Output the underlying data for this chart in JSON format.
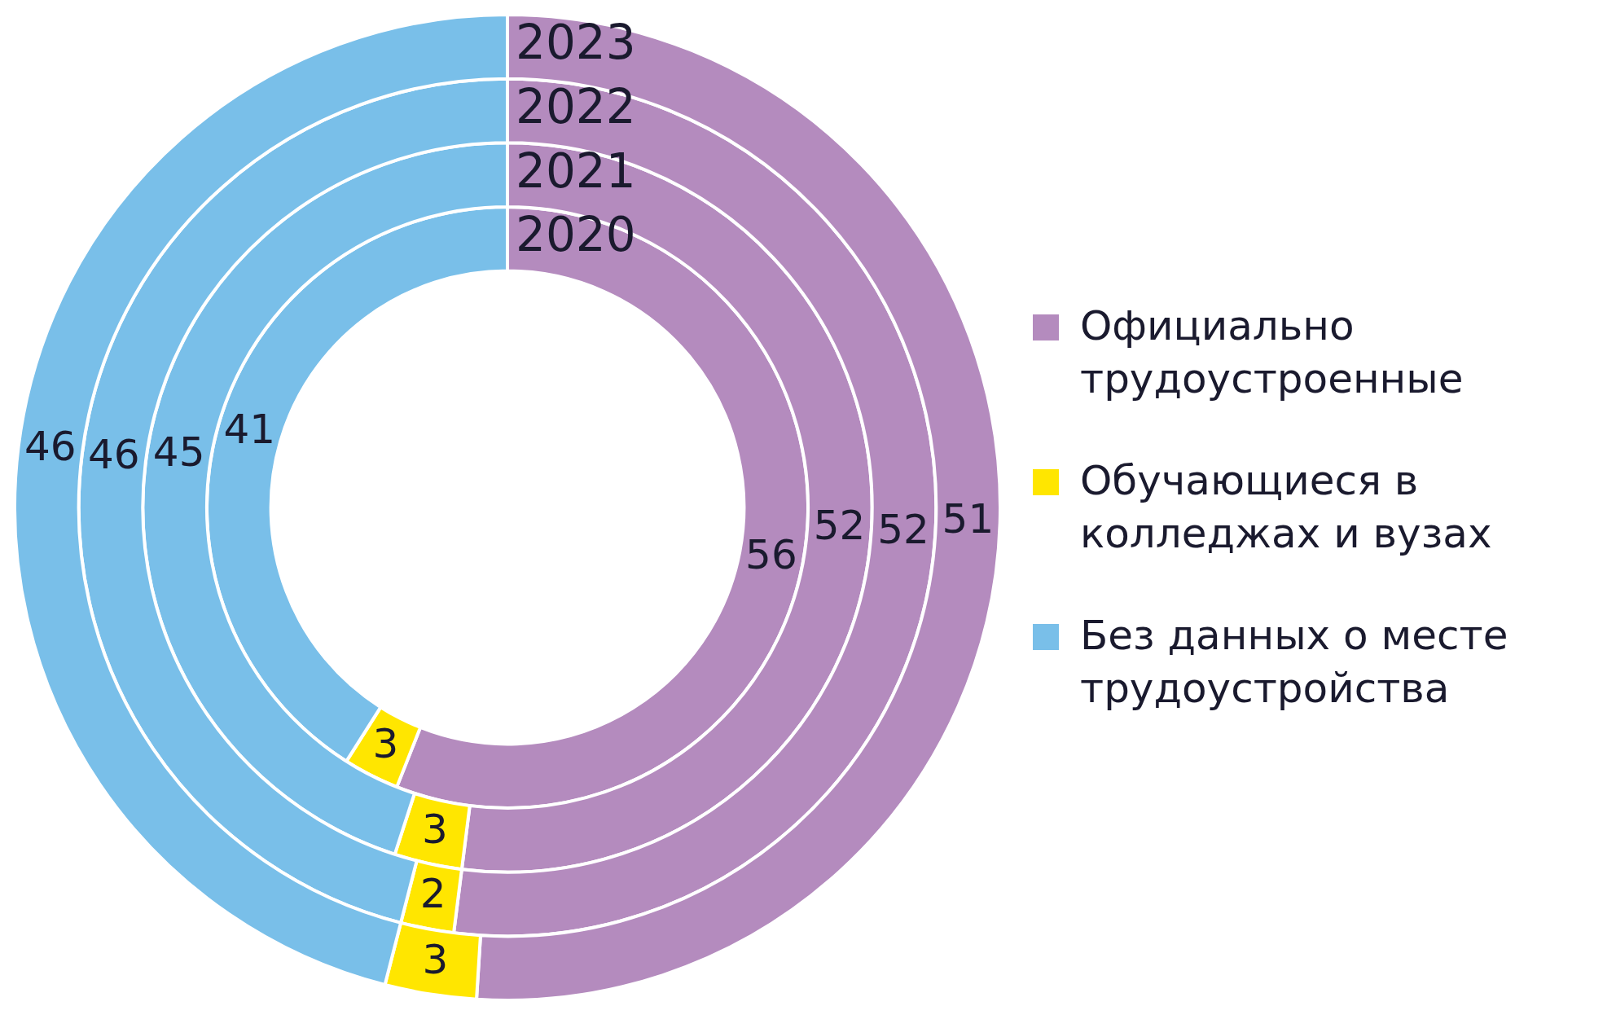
{
  "chart_data": {
    "type": "donut",
    "categories": [
      "Официально трудоустроенные",
      "Обучающиеся в колледжах и вузах",
      "Без данных о месте трудоустройства"
    ],
    "colors": [
      "#b48bbe",
      "#ffe600",
      "#79bfe9"
    ],
    "series": [
      {
        "name": "2020",
        "values": [
          56,
          3,
          41
        ]
      },
      {
        "name": "2021",
        "values": [
          52,
          3,
          45
        ]
      },
      {
        "name": "2022",
        "values": [
          52,
          2,
          46
        ]
      },
      {
        "name": "2023",
        "values": [
          51,
          3,
          46
        ]
      }
    ],
    "data_labels": true,
    "legend": "right"
  }
}
